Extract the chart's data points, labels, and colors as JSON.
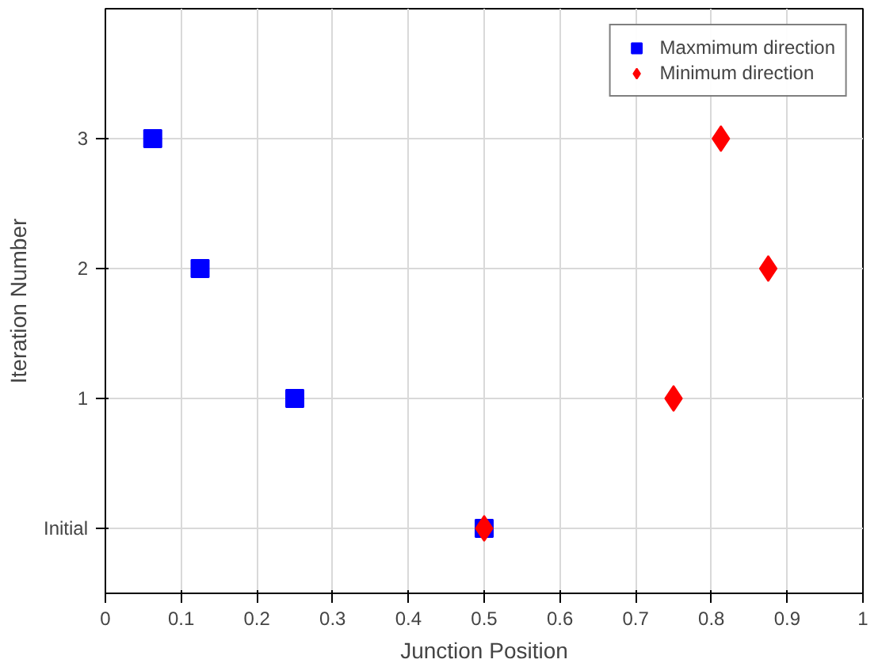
{
  "chart_data": {
    "type": "scatter",
    "xlabel": "Junction Position",
    "ylabel": "Iteration Number",
    "xlim": [
      0,
      1
    ],
    "xticks": [
      0,
      0.1,
      0.2,
      0.3,
      0.4,
      0.5,
      0.6,
      0.7,
      0.8,
      0.9,
      1
    ],
    "ylim": [
      -0.5,
      4
    ],
    "yticks": [
      {
        "value": 0,
        "label": "Initial"
      },
      1,
      2,
      3
    ],
    "grid": true,
    "legend": "top right",
    "series": [
      {
        "name": "Maxmimum direction",
        "color": "#0000ff",
        "marker": "square",
        "x": [
          0.0625,
          0.125,
          0.25,
          0.5
        ],
        "values": [
          3,
          2,
          1,
          0
        ]
      },
      {
        "name": "Minimum direction",
        "color": "#ff0000",
        "marker": "diamond",
        "x": [
          0.8125,
          0.875,
          0.75,
          0.5
        ],
        "values": [
          3,
          2,
          1,
          0
        ]
      }
    ]
  }
}
